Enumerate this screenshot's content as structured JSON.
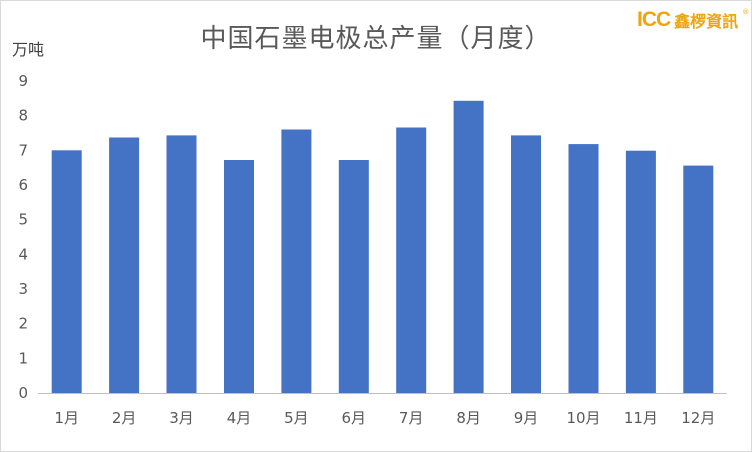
{
  "logo": {
    "mark": "ICC",
    "name": "鑫椤資訊",
    "reg": "®"
  },
  "chart_data": {
    "type": "bar",
    "title": "中国石墨电极总产量（月度）",
    "ylabel": "万吨",
    "xlabel": "",
    "categories": [
      "1月",
      "2月",
      "3月",
      "4月",
      "5月",
      "6月",
      "7月",
      "8月",
      "9月",
      "10月",
      "11月",
      "12月"
    ],
    "values": [
      7.0,
      7.37,
      7.43,
      6.72,
      7.6,
      6.72,
      7.66,
      8.43,
      7.43,
      7.18,
      6.99,
      6.56
    ],
    "ylim": [
      0,
      9
    ],
    "yticks": [
      0,
      1,
      2,
      3,
      4,
      5,
      6,
      7,
      8,
      9
    ],
    "bar_color": "#4472c4",
    "grid": false,
    "legend": "none"
  }
}
